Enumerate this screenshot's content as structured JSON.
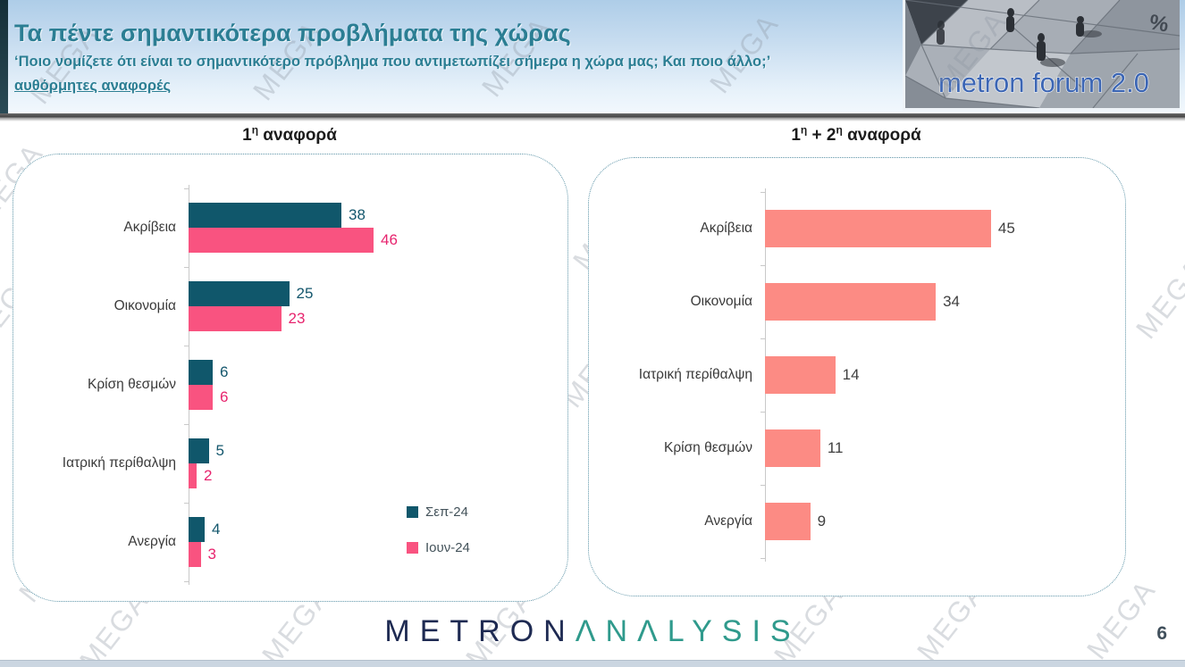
{
  "header": {
    "title": "Τα πέντε σημαντικότερα προβλήματα της χώρας",
    "subtitle_line1": "‘Ποιο νομίζετε ότι είναι το σημαντικότερο πρόβλημα που αντιμετωπίζει σήμερα η χώρα μας; Και ποιο άλλο;’",
    "subtitle_line2": "αυθόρμητες αναφορές",
    "accent_color": "#2b7e93",
    "logo": {
      "text": "metron forum 2.0",
      "percent_sign": "%",
      "text_color": "#3c66b4"
    }
  },
  "watermark": {
    "text": "MEGA"
  },
  "chart_data": [
    {
      "type": "bar",
      "orientation": "horizontal",
      "title": "1η αναφορά",
      "title_parts": [
        {
          "text": "1",
          "sup": false
        },
        {
          "text": "η",
          "sup": true
        },
        {
          "text": " αναφορά",
          "sup": false
        }
      ],
      "categories": [
        "Ακρίβεια",
        "Οικονομία",
        "Κρίση θεσμών",
        "Ιατρική περίθαλψη",
        "Ανεργία"
      ],
      "series": [
        {
          "name": "Σεπ-24",
          "color": "#10576b",
          "label_color": "#14576d",
          "values": [
            38,
            25,
            6,
            5,
            4
          ]
        },
        {
          "name": "Ιουν-24",
          "color": "#f95380",
          "label_color": "#e7246e",
          "values": [
            46,
            23,
            6,
            2,
            3
          ]
        }
      ],
      "value_labels": "end-of-bar",
      "xlim": [
        0,
        50
      ],
      "grid": false,
      "legend_position": "inside-bottom-right"
    },
    {
      "type": "bar",
      "orientation": "horizontal",
      "title": "1η + 2η αναφορά",
      "title_parts": [
        {
          "text": "1",
          "sup": false
        },
        {
          "text": "η",
          "sup": true
        },
        {
          "text": " + 2",
          "sup": false
        },
        {
          "text": "η",
          "sup": true
        },
        {
          "text": " αναφορά",
          "sup": false
        }
      ],
      "categories": [
        "Ακρίβεια",
        "Οικονομία",
        "Ιατρική περίθαλψη",
        "Κρίση θεσμών",
        "Ανεργία"
      ],
      "series": [
        {
          "name": "1η + 2η αναφορά",
          "color": "#fc8b84",
          "label_color": "#3f3f3f",
          "values": [
            45,
            34,
            14,
            11,
            9
          ]
        }
      ],
      "value_labels": "end-of-bar",
      "xlim": [
        0,
        50
      ],
      "grid": false,
      "legend_position": "none"
    }
  ],
  "footer": {
    "logo_metron": "METRON",
    "logo_analysis": "ΛNΛLYSIS",
    "page_number": "6"
  }
}
